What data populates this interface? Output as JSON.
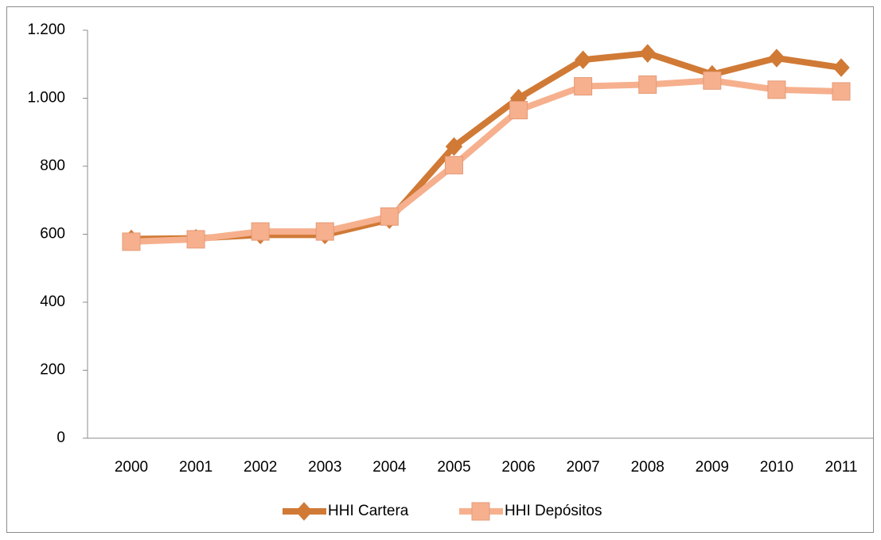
{
  "chart_data": {
    "type": "line",
    "categories": [
      "2000",
      "2001",
      "2002",
      "2003",
      "2004",
      "2005",
      "2006",
      "2007",
      "2008",
      "2009",
      "2010",
      "2011"
    ],
    "series": [
      {
        "name": "HHI Cartera",
        "color": "#d07a36",
        "marker": "diamond",
        "values": [
          586,
          588,
          598,
          598,
          643,
          858,
          1000,
          1113,
          1132,
          1070,
          1118,
          1090
        ]
      },
      {
        "name": "HHI Depósitos",
        "color": "#f6b08e",
        "marker": "square",
        "values": [
          578,
          585,
          608,
          608,
          652,
          803,
          965,
          1035,
          1040,
          1052,
          1025,
          1020
        ]
      }
    ],
    "ylim": [
      0,
      1200
    ],
    "yticks": [
      0,
      200,
      400,
      600,
      800,
      {
        "value": 1000,
        "label": "1.000"
      },
      {
        "value": 1200,
        "label": "1.200"
      }
    ],
    "grid": false,
    "legend": "bottom"
  }
}
